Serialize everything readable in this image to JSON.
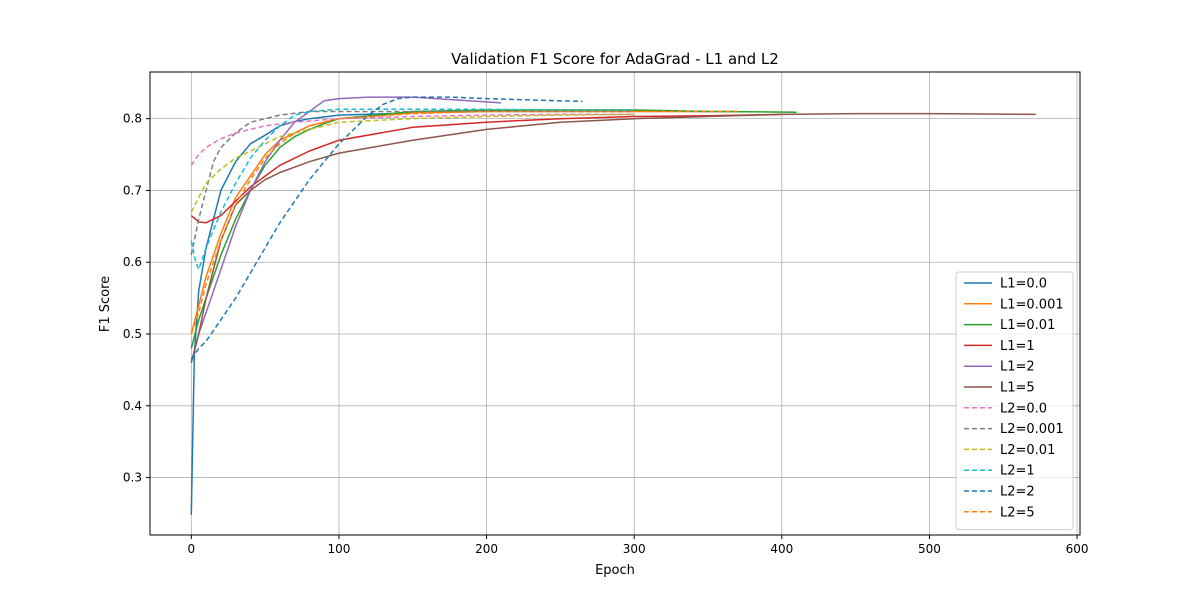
{
  "chart_data": {
    "type": "line",
    "title": "Validation F1 Score for AdaGrad - L1 and L2",
    "xlabel": "Epoch",
    "ylabel": "F1 Score",
    "xlim": [
      -28,
      602
    ],
    "ylim": [
      0.22,
      0.865
    ],
    "xticks": [
      0,
      100,
      200,
      300,
      400,
      500,
      600
    ],
    "yticks": [
      0.3,
      0.4,
      0.5,
      0.6,
      0.7,
      0.8
    ],
    "grid": true,
    "legend_position": "lower-right",
    "series": [
      {
        "name": "L1=0.0",
        "color": "#1f77b4",
        "dash": "solid",
        "points": [
          [
            0,
            0.248
          ],
          [
            2,
            0.47
          ],
          [
            5,
            0.56
          ],
          [
            10,
            0.62
          ],
          [
            15,
            0.66
          ],
          [
            20,
            0.7
          ],
          [
            30,
            0.74
          ],
          [
            40,
            0.765
          ],
          [
            50,
            0.777
          ],
          [
            60,
            0.79
          ],
          [
            70,
            0.796
          ],
          [
            80,
            0.8
          ],
          [
            100,
            0.805
          ],
          [
            150,
            0.808
          ],
          [
            200,
            0.811
          ],
          [
            250,
            0.811
          ],
          [
            300,
            0.811
          ],
          [
            350,
            0.81
          ]
        ]
      },
      {
        "name": "L1=0.001",
        "color": "#ff7f0e",
        "dash": "solid",
        "points": [
          [
            0,
            0.5
          ],
          [
            5,
            0.54
          ],
          [
            10,
            0.58
          ],
          [
            20,
            0.64
          ],
          [
            30,
            0.69
          ],
          [
            40,
            0.72
          ],
          [
            50,
            0.75
          ],
          [
            60,
            0.77
          ],
          [
            70,
            0.78
          ],
          [
            80,
            0.79
          ],
          [
            90,
            0.795
          ],
          [
            100,
            0.8
          ],
          [
            150,
            0.808
          ],
          [
            200,
            0.81
          ],
          [
            250,
            0.81
          ],
          [
            300,
            0.81
          ],
          [
            350,
            0.81
          ],
          [
            370,
            0.81
          ]
        ]
      },
      {
        "name": "L1=0.01",
        "color": "#2ca02c",
        "dash": "solid",
        "points": [
          [
            0,
            0.48
          ],
          [
            5,
            0.52
          ],
          [
            10,
            0.55
          ],
          [
            20,
            0.61
          ],
          [
            30,
            0.66
          ],
          [
            40,
            0.7
          ],
          [
            50,
            0.735
          ],
          [
            60,
            0.76
          ],
          [
            70,
            0.775
          ],
          [
            80,
            0.785
          ],
          [
            90,
            0.793
          ],
          [
            100,
            0.8
          ],
          [
            150,
            0.81
          ],
          [
            200,
            0.812
          ],
          [
            250,
            0.812
          ],
          [
            300,
            0.812
          ],
          [
            350,
            0.81
          ],
          [
            410,
            0.809
          ]
        ]
      },
      {
        "name": "L1=1",
        "color": "#d62728",
        "dash": "solid",
        "points": [
          [
            0,
            0.665
          ],
          [
            5,
            0.656
          ],
          [
            10,
            0.655
          ],
          [
            20,
            0.665
          ],
          [
            30,
            0.685
          ],
          [
            40,
            0.705
          ],
          [
            50,
            0.72
          ],
          [
            60,
            0.735
          ],
          [
            80,
            0.755
          ],
          [
            100,
            0.77
          ],
          [
            150,
            0.788
          ],
          [
            200,
            0.795
          ],
          [
            250,
            0.8
          ],
          [
            300,
            0.803
          ],
          [
            350,
            0.804
          ],
          [
            400,
            0.806
          ]
        ]
      },
      {
        "name": "L1=2",
        "color": "#9467bd",
        "dash": "solid",
        "points": [
          [
            0,
            0.46
          ],
          [
            5,
            0.5
          ],
          [
            10,
            0.53
          ],
          [
            20,
            0.59
          ],
          [
            30,
            0.65
          ],
          [
            40,
            0.7
          ],
          [
            50,
            0.74
          ],
          [
            60,
            0.77
          ],
          [
            70,
            0.795
          ],
          [
            80,
            0.81
          ],
          [
            90,
            0.825
          ],
          [
            100,
            0.828
          ],
          [
            120,
            0.83
          ],
          [
            150,
            0.83
          ],
          [
            180,
            0.826
          ],
          [
            210,
            0.822
          ]
        ]
      },
      {
        "name": "L1=5",
        "color": "#8c564b",
        "dash": "solid",
        "points": [
          [
            0,
            0.46
          ],
          [
            5,
            0.5
          ],
          [
            10,
            0.55
          ],
          [
            20,
            0.63
          ],
          [
            30,
            0.68
          ],
          [
            40,
            0.7
          ],
          [
            50,
            0.715
          ],
          [
            60,
            0.725
          ],
          [
            80,
            0.74
          ],
          [
            100,
            0.752
          ],
          [
            150,
            0.77
          ],
          [
            200,
            0.785
          ],
          [
            250,
            0.795
          ],
          [
            300,
            0.8
          ],
          [
            350,
            0.803
          ],
          [
            400,
            0.806
          ],
          [
            450,
            0.807
          ],
          [
            500,
            0.807
          ],
          [
            572,
            0.806
          ]
        ]
      },
      {
        "name": "L2=0.0",
        "color": "#e377c2",
        "dash": "dashed",
        "points": [
          [
            0,
            0.735
          ],
          [
            5,
            0.75
          ],
          [
            10,
            0.76
          ],
          [
            20,
            0.772
          ],
          [
            30,
            0.78
          ],
          [
            50,
            0.79
          ],
          [
            70,
            0.795
          ],
          [
            100,
            0.8
          ],
          [
            150,
            0.803
          ],
          [
            200,
            0.805
          ],
          [
            250,
            0.806
          ],
          [
            300,
            0.806
          ]
        ]
      },
      {
        "name": "L2=0.001",
        "color": "#7f7f7f",
        "dash": "dashed",
        "points": [
          [
            0,
            0.61
          ],
          [
            3,
            0.64
          ],
          [
            5,
            0.66
          ],
          [
            10,
            0.7
          ],
          [
            15,
            0.74
          ],
          [
            20,
            0.76
          ],
          [
            30,
            0.78
          ],
          [
            40,
            0.795
          ],
          [
            50,
            0.8
          ],
          [
            60,
            0.805
          ],
          [
            80,
            0.81
          ],
          [
            100,
            0.81
          ],
          [
            150,
            0.81
          ],
          [
            200,
            0.81
          ],
          [
            250,
            0.81
          ],
          [
            300,
            0.81
          ]
        ]
      },
      {
        "name": "L2=0.01",
        "color": "#bcbd22",
        "dash": "dashed",
        "points": [
          [
            0,
            0.67
          ],
          [
            5,
            0.69
          ],
          [
            10,
            0.71
          ],
          [
            20,
            0.73
          ],
          [
            30,
            0.745
          ],
          [
            40,
            0.755
          ],
          [
            50,
            0.765
          ],
          [
            60,
            0.775
          ],
          [
            80,
            0.785
          ],
          [
            100,
            0.795
          ],
          [
            150,
            0.8
          ],
          [
            200,
            0.803
          ],
          [
            250,
            0.805
          ],
          [
            300,
            0.806
          ]
        ]
      },
      {
        "name": "L2=1",
        "color": "#17becf",
        "dash": "dashed",
        "points": [
          [
            0,
            0.63
          ],
          [
            3,
            0.6
          ],
          [
            5,
            0.59
          ],
          [
            10,
            0.62
          ],
          [
            20,
            0.67
          ],
          [
            30,
            0.71
          ],
          [
            40,
            0.745
          ],
          [
            50,
            0.77
          ],
          [
            60,
            0.79
          ],
          [
            70,
            0.805
          ],
          [
            80,
            0.81
          ],
          [
            100,
            0.813
          ],
          [
            150,
            0.813
          ],
          [
            200,
            0.813
          ],
          [
            250,
            0.812
          ],
          [
            300,
            0.812
          ]
        ]
      },
      {
        "name": "L2=2",
        "color": "#1f77b4",
        "dash": "dashed",
        "points": [
          [
            0,
            0.465
          ],
          [
            5,
            0.48
          ],
          [
            10,
            0.49
          ],
          [
            20,
            0.52
          ],
          [
            30,
            0.55
          ],
          [
            40,
            0.585
          ],
          [
            50,
            0.62
          ],
          [
            60,
            0.655
          ],
          [
            70,
            0.685
          ],
          [
            80,
            0.715
          ],
          [
            90,
            0.74
          ],
          [
            100,
            0.765
          ],
          [
            110,
            0.785
          ],
          [
            120,
            0.805
          ],
          [
            130,
            0.82
          ],
          [
            140,
            0.828
          ],
          [
            150,
            0.83
          ],
          [
            175,
            0.83
          ],
          [
            200,
            0.828
          ],
          [
            230,
            0.826
          ],
          [
            265,
            0.824
          ]
        ]
      },
      {
        "name": "L2=5",
        "color": "#ff7f0e",
        "dash": "dashed",
        "points": [
          [
            0,
            0.5
          ],
          [
            5,
            0.53
          ],
          [
            10,
            0.57
          ],
          [
            20,
            0.63
          ],
          [
            30,
            0.68
          ],
          [
            40,
            0.715
          ],
          [
            50,
            0.745
          ],
          [
            60,
            0.765
          ],
          [
            70,
            0.78
          ],
          [
            80,
            0.79
          ],
          [
            100,
            0.8
          ],
          [
            150,
            0.807
          ],
          [
            200,
            0.81
          ],
          [
            250,
            0.81
          ],
          [
            300,
            0.81
          ],
          [
            350,
            0.81
          ],
          [
            370,
            0.81
          ]
        ]
      }
    ]
  }
}
